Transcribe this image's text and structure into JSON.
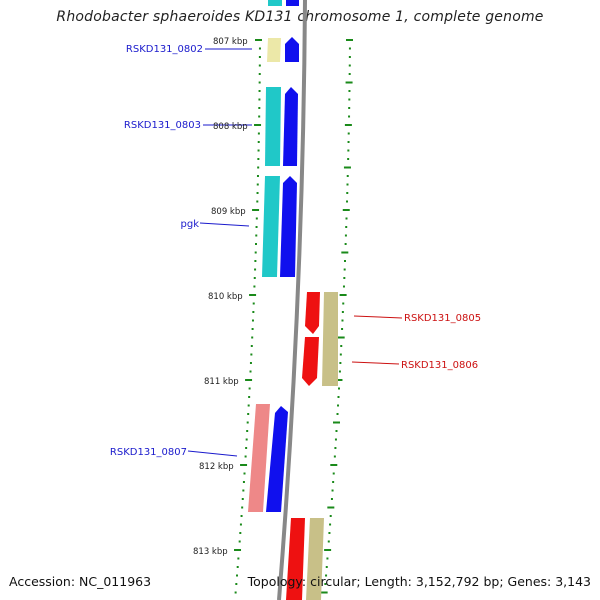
{
  "title": "Rhodobacter sphaeroides KD131 chromosome 1, complete genome",
  "footer": {
    "accession": "Accession: NC_011963",
    "topology": "Topology: circular; Length: 3,152,792 bp; Genes: 3,143"
  },
  "colors": {
    "backbone": "#888888",
    "tick": "#1a8a1a",
    "label_forward": "#1a1acc",
    "label_reverse": "#cc1111",
    "gene_blue": "#1010ee",
    "gene_cyan": "#20c8c8",
    "gene_tan": "#c8c088",
    "gene_pale_yellow": "#ece8a8",
    "gene_red": "#ee1111",
    "gene_pink": "#ee8888"
  },
  "scale_labels": [
    "807 kbp",
    "808 kbp",
    "809 kbp",
    "810 kbp",
    "811 kbp",
    "812 kbp",
    "813 kbp"
  ],
  "genes": [
    {
      "label": "RSKD131_0802",
      "strand": "forward"
    },
    {
      "label": "RSKD131_0803",
      "strand": "forward"
    },
    {
      "label": "pgk",
      "strand": "forward"
    },
    {
      "label": "RSKD131_0805",
      "strand": "reverse"
    },
    {
      "label": "RSKD131_0806",
      "strand": "reverse"
    },
    {
      "label": "RSKD131_0807",
      "strand": "forward"
    }
  ]
}
